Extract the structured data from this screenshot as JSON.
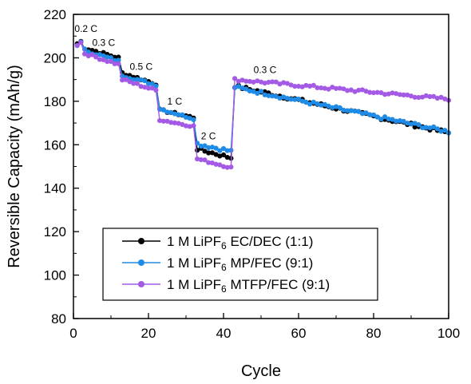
{
  "chart_data": {
    "type": "line",
    "xlabel": "Cycle",
    "ylabel": "Reversible Capacity (mAh/g)",
    "xlim": [
      0,
      100
    ],
    "ylim": [
      80,
      220
    ],
    "xticks": [
      0,
      20,
      40,
      60,
      80,
      100
    ],
    "yticks": [
      80,
      100,
      120,
      140,
      160,
      180,
      200,
      220
    ],
    "grid": false,
    "legend_position": "lower-left",
    "rate_labels": [
      {
        "text": "0.2 C",
        "x": 0.3,
        "y": 212
      },
      {
        "text": "0.3 C",
        "x": 5,
        "y": 205.5
      },
      {
        "text": "0.5 C",
        "x": 15,
        "y": 194.5
      },
      {
        "text": "1 C",
        "x": 25,
        "y": 178.5
      },
      {
        "text": "2 C",
        "x": 34,
        "y": 162.5
      },
      {
        "text": "0.3 C",
        "x": 48,
        "y": 193
      }
    ],
    "series": [
      {
        "name": "1 M LiPF6 EC/DEC (1:1)",
        "legend_main": "1 M LiPF",
        "legend_sub": "6",
        "legend_rest": " EC/DEC (1:1)",
        "color": "#000000",
        "segments": [
          {
            "x0": 1,
            "x1": 2,
            "y0": 206.5,
            "y1": 207.5,
            "noise": 0.5
          },
          {
            "x0": 3,
            "x1": 12,
            "y0": 204.5,
            "y1": 200,
            "noise": 0.6
          },
          {
            "x0": 13,
            "x1": 22,
            "y0": 193,
            "y1": 188,
            "noise": 0.6
          },
          {
            "x0": 23,
            "x1": 32,
            "y0": 176,
            "y1": 172.5,
            "noise": 0.5
          },
          {
            "x0": 33,
            "x1": 42,
            "y0": 158,
            "y1": 154,
            "noise": 0.8
          },
          {
            "x0": 43,
            "x1": 100,
            "y0": 187,
            "y1": 165.5,
            "noise": 0.8
          }
        ]
      },
      {
        "name": "1 M LiPF6 MP/FEC (9:1)",
        "legend_main": "1 M LiPF",
        "legend_sub": "6",
        "legend_rest": " MP/FEC (9:1)",
        "color": "#1e8ce6",
        "segments": [
          {
            "x0": 1,
            "x1": 2,
            "y0": 206,
            "y1": 207,
            "noise": 0.5
          },
          {
            "x0": 3,
            "x1": 12,
            "y0": 203.5,
            "y1": 198.5,
            "noise": 0.6
          },
          {
            "x0": 13,
            "x1": 22,
            "y0": 192,
            "y1": 187.5,
            "noise": 0.6
          },
          {
            "x0": 23,
            "x1": 32,
            "y0": 176.5,
            "y1": 172,
            "noise": 0.5
          },
          {
            "x0": 33,
            "x1": 42,
            "y0": 160.5,
            "y1": 157,
            "noise": 0.9
          },
          {
            "x0": 43,
            "x1": 100,
            "y0": 186.5,
            "y1": 166,
            "noise": 0.8
          }
        ]
      },
      {
        "name": "1 M LiPF6 MTFP/FEC (9:1)",
        "legend_main": "1 M LiPF",
        "legend_sub": "6",
        "legend_rest": " MTFP/FEC (9:1)",
        "color": "#a55ae6",
        "segments": [
          {
            "x0": 1,
            "x1": 2,
            "y0": 206,
            "y1": 207,
            "noise": 0.5
          },
          {
            "x0": 3,
            "x1": 12,
            "y0": 202,
            "y1": 197,
            "noise": 0.6
          },
          {
            "x0": 13,
            "x1": 22,
            "y0": 190,
            "y1": 185,
            "noise": 0.6
          },
          {
            "x0": 23,
            "x1": 32,
            "y0": 171.5,
            "y1": 168.5,
            "noise": 0.5
          },
          {
            "x0": 33,
            "x1": 42,
            "y0": 153.5,
            "y1": 149.5,
            "noise": 0.5
          },
          {
            "x0": 43,
            "x1": 100,
            "y0": 190,
            "y1": 181,
            "noise": 0.7
          }
        ]
      }
    ]
  }
}
